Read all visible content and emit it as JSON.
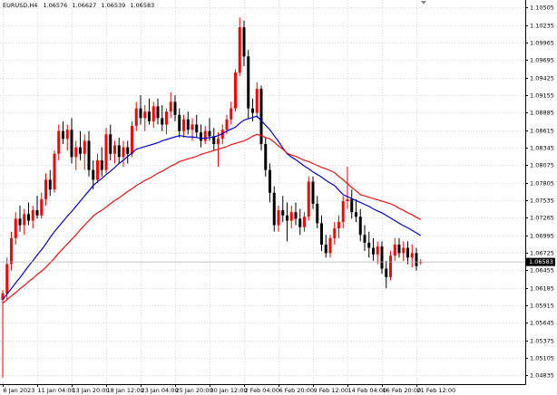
{
  "chart_data": {
    "type": "candlestick",
    "title": "EURUSD,H4",
    "up_color": "#ff0000",
    "down_color": "#000000",
    "grid": true,
    "ylim": [
      1.047,
      1.1062
    ],
    "yticks": [
      1.10505,
      1.10235,
      1.09965,
      1.09695,
      1.09425,
      1.09155,
      1.08885,
      1.08615,
      1.08345,
      1.08075,
      1.07805,
      1.07535,
      1.07265,
      1.06995,
      1.06725,
      1.06455,
      1.06185,
      1.05915,
      1.05645,
      1.05375,
      1.05105,
      1.04835
    ],
    "categories": [
      "6 Jan 2023",
      null,
      null,
      null,
      null,
      null,
      null,
      null,
      "11 Jan 04:00",
      null,
      null,
      null,
      null,
      null,
      null,
      null,
      "13 Jan 20:00",
      null,
      null,
      null,
      null,
      null,
      null,
      null,
      "18 Jan 12:00",
      null,
      null,
      null,
      null,
      null,
      null,
      null,
      "23 Jan 04:00",
      null,
      null,
      null,
      null,
      null,
      null,
      null,
      "25 Jan 20:00",
      null,
      null,
      null,
      null,
      null,
      null,
      null,
      "30 Jan 12:00",
      null,
      null,
      null,
      null,
      null,
      null,
      null,
      "2 Feb 04:00",
      null,
      null,
      null,
      null,
      null,
      null,
      null,
      "6 Feb 20:00",
      null,
      null,
      null,
      null,
      null,
      null,
      null,
      "9 Feb 12:00",
      null,
      null,
      null,
      null,
      null,
      null,
      null,
      "14 Feb 04:00",
      null,
      null,
      null,
      null,
      null,
      null,
      null,
      "16 Feb 20:00",
      null,
      null,
      null,
      null,
      null,
      null,
      null,
      "21 Feb 12:00",
      null
    ],
    "ohlc": [
      [
        1.06,
        1.0615,
        1.048,
        1.061
      ],
      [
        1.061,
        1.0665,
        1.06,
        1.0655
      ],
      [
        1.0655,
        1.0705,
        1.0645,
        1.0695
      ],
      [
        1.0695,
        1.0735,
        1.0685,
        1.0725
      ],
      [
        1.0725,
        1.0745,
        1.0705,
        1.0715
      ],
      [
        1.0715,
        1.074,
        1.07,
        1.0732
      ],
      [
        1.0732,
        1.075,
        1.0715,
        1.0722
      ],
      [
        1.0722,
        1.0745,
        1.071,
        1.0738
      ],
      [
        1.0738,
        1.076,
        1.0725,
        1.073
      ],
      [
        1.073,
        1.0765,
        1.0725,
        1.0755
      ],
      [
        1.0755,
        1.0795,
        1.0745,
        1.0785
      ],
      [
        1.0785,
        1.08,
        1.076,
        1.077
      ],
      [
        1.077,
        1.083,
        1.0765,
        1.0825
      ],
      [
        1.0825,
        1.087,
        1.0815,
        1.086
      ],
      [
        1.086,
        1.0875,
        1.084,
        1.0848
      ],
      [
        1.0848,
        1.087,
        1.083,
        1.0862
      ],
      [
        1.0862,
        1.088,
        1.081,
        1.082
      ],
      [
        1.082,
        1.0845,
        1.08,
        1.0835
      ],
      [
        1.0835,
        1.086,
        1.0815,
        1.0825
      ],
      [
        1.0825,
        1.0855,
        1.08,
        1.0845
      ],
      [
        1.0845,
        1.086,
        1.079,
        1.08
      ],
      [
        1.08,
        1.0815,
        1.077,
        1.0785
      ],
      [
        1.0785,
        1.0825,
        1.078,
        1.0815
      ],
      [
        1.0815,
        1.0835,
        1.079,
        1.08
      ],
      [
        1.08,
        1.0865,
        1.0795,
        1.0855
      ],
      [
        1.0855,
        1.087,
        1.0815,
        1.0825
      ],
      [
        1.0825,
        1.0845,
        1.081,
        1.0838
      ],
      [
        1.0838,
        1.085,
        1.081,
        1.082
      ],
      [
        1.082,
        1.0845,
        1.0805,
        1.0835
      ],
      [
        1.0835,
        1.0845,
        1.081,
        1.0825
      ],
      [
        1.0825,
        1.0875,
        1.082,
        1.0868
      ],
      [
        1.0868,
        1.0905,
        1.086,
        1.0895
      ],
      [
        1.0895,
        1.0915,
        1.087,
        1.088
      ],
      [
        1.088,
        1.09,
        1.086,
        1.089
      ],
      [
        1.089,
        1.091,
        1.087,
        1.0875
      ],
      [
        1.0875,
        1.0905,
        1.0865,
        1.0898
      ],
      [
        1.0898,
        1.091,
        1.087,
        1.088
      ],
      [
        1.088,
        1.09,
        1.086,
        1.087
      ],
      [
        1.087,
        1.0895,
        1.0855,
        1.089
      ],
      [
        1.089,
        1.092,
        1.088,
        1.0905
      ],
      [
        1.0905,
        1.0915,
        1.0875,
        1.0885
      ],
      [
        1.0885,
        1.0895,
        1.085,
        1.086
      ],
      [
        1.086,
        1.0885,
        1.085,
        1.0878
      ],
      [
        1.0878,
        1.089,
        1.0855,
        1.0862
      ],
      [
        1.0862,
        1.088,
        1.0845,
        1.087
      ],
      [
        1.087,
        1.0885,
        1.085,
        1.0858
      ],
      [
        1.0858,
        1.087,
        1.0835,
        1.0845
      ],
      [
        1.0845,
        1.0868,
        1.084,
        1.086
      ],
      [
        1.086,
        1.088,
        1.0845,
        1.0852
      ],
      [
        1.0852,
        1.0865,
        1.083,
        1.084
      ],
      [
        1.084,
        1.0858,
        1.0805,
        1.0848
      ],
      [
        1.0848,
        1.087,
        1.084,
        1.0862
      ],
      [
        1.0862,
        1.0885,
        1.0855,
        1.0878
      ],
      [
        1.0878,
        1.0905,
        1.087,
        1.0895
      ],
      [
        1.0895,
        1.0955,
        1.089,
        1.095
      ],
      [
        1.095,
        1.1035,
        1.0945,
        1.102
      ],
      [
        1.102,
        1.103,
        1.096,
        1.0975
      ],
      [
        1.0975,
        1.0985,
        1.088,
        1.0895
      ],
      [
        1.0895,
        1.091,
        1.0875,
        1.0888
      ],
      [
        1.0888,
        1.0935,
        1.088,
        1.0925
      ],
      [
        1.0925,
        1.093,
        1.083,
        1.084
      ],
      [
        1.084,
        1.085,
        1.079,
        1.08
      ],
      [
        1.08,
        1.081,
        1.075,
        1.0765
      ],
      [
        1.0765,
        1.0775,
        1.0705,
        1.0715
      ],
      [
        1.0715,
        1.0745,
        1.0705,
        1.0738
      ],
      [
        1.0738,
        1.076,
        1.072,
        1.073
      ],
      [
        1.073,
        1.075,
        1.069,
        1.0722
      ],
      [
        1.0722,
        1.0745,
        1.071,
        1.0735
      ],
      [
        1.0735,
        1.075,
        1.0715,
        1.0725
      ],
      [
        1.0725,
        1.074,
        1.07,
        1.0712
      ],
      [
        1.0712,
        1.0735,
        1.0705,
        1.0728
      ],
      [
        1.0728,
        1.079,
        1.0722,
        1.0782
      ],
      [
        1.0782,
        1.079,
        1.074,
        1.0748
      ],
      [
        1.0748,
        1.076,
        1.071,
        1.0718
      ],
      [
        1.0718,
        1.073,
        1.0675,
        1.0685
      ],
      [
        1.0685,
        1.07,
        1.0665,
        1.0672
      ],
      [
        1.0672,
        1.07,
        1.0665,
        1.0695
      ],
      [
        1.0695,
        1.072,
        1.0685,
        1.071
      ],
      [
        1.071,
        1.073,
        1.0695,
        1.072
      ],
      [
        1.072,
        1.076,
        1.071,
        1.0752
      ],
      [
        1.0752,
        1.0805,
        1.074,
        1.0755
      ],
      [
        1.0755,
        1.077,
        1.0725,
        1.0735
      ],
      [
        1.0735,
        1.0755,
        1.072,
        1.0728
      ],
      [
        1.0728,
        1.074,
        1.069,
        1.07
      ],
      [
        1.07,
        1.0715,
        1.0675,
        1.0688
      ],
      [
        1.0688,
        1.0705,
        1.0665,
        1.068
      ],
      [
        1.068,
        1.0695,
        1.066,
        1.067
      ],
      [
        1.067,
        1.069,
        1.0655,
        1.0682
      ],
      [
        1.0682,
        1.069,
        1.064,
        1.0648
      ],
      [
        1.0648,
        1.066,
        1.0618,
        1.0635
      ],
      [
        1.0635,
        1.0675,
        1.063,
        1.0668
      ],
      [
        1.0668,
        1.0695,
        1.066,
        1.0685
      ],
      [
        1.0685,
        1.0695,
        1.0665,
        1.0672
      ],
      [
        1.0672,
        1.069,
        1.066,
        1.068
      ],
      [
        1.068,
        1.069,
        1.0655,
        1.0665
      ],
      [
        1.0665,
        1.0685,
        1.065,
        1.0672
      ],
      [
        1.0672,
        1.068,
        1.0645,
        1.0652
      ],
      [
        1.06576,
        1.06627,
        1.06539,
        1.06583
      ]
    ],
    "series": [
      {
        "color": "#0000cc",
        "values": [
          1.06,
          1.0609,
          1.0617,
          1.0626,
          1.0634,
          1.0643,
          1.0652,
          1.066,
          1.0669,
          1.0677,
          1.0686,
          1.0696,
          1.0705,
          1.0713,
          1.0721,
          1.0729,
          1.0736,
          1.0744,
          1.0752,
          1.076,
          1.0768,
          1.0776,
          1.0782,
          1.0787,
          1.0793,
          1.0798,
          1.0804,
          1.081,
          1.0815,
          1.0821,
          1.0826,
          1.0832,
          1.0834,
          1.0836,
          1.0838,
          1.084,
          1.0842,
          1.0845,
          1.0847,
          1.0849,
          1.0851,
          1.0853,
          1.0852,
          1.0851,
          1.0851,
          1.085,
          1.0849,
          1.0849,
          1.085,
          1.0851,
          1.0853,
          1.0856,
          1.086,
          1.0863,
          1.0866,
          1.0872,
          1.0877,
          1.0879,
          1.0881,
          1.0883,
          1.0876,
          1.0869,
          1.0862,
          1.0853,
          1.0844,
          1.0834,
          1.0825,
          1.082,
          1.0816,
          1.0811,
          1.0806,
          1.0802,
          1.0797,
          1.0793,
          1.0789,
          1.0784,
          1.078,
          1.0776,
          1.0769,
          1.0762,
          1.0759,
          1.0756,
          1.0753,
          1.075,
          1.0747,
          1.0744,
          1.074,
          1.0737,
          1.0734,
          1.073,
          1.0726,
          1.0722,
          1.0718,
          1.0714,
          1.0711,
          1.0707,
          1.0703,
          1.0699
        ]
      },
      {
        "color": "#ee1111",
        "values": [
          1.0595,
          1.06,
          1.0606,
          1.0611,
          1.0617,
          1.0622,
          1.0628,
          1.0633,
          1.0639,
          1.0644,
          1.065,
          1.0657,
          1.0664,
          1.0672,
          1.0679,
          1.0686,
          1.0693,
          1.07,
          1.0708,
          1.0715,
          1.0722,
          1.0729,
          1.0734,
          1.0738,
          1.0743,
          1.0748,
          1.0753,
          1.0757,
          1.0762,
          1.0767,
          1.0771,
          1.0776,
          1.078,
          1.0784,
          1.0787,
          1.0791,
          1.0795,
          1.0798,
          1.0802,
          1.0806,
          1.0809,
          1.0813,
          1.0815,
          1.0817,
          1.0819,
          1.0821,
          1.0824,
          1.0826,
          1.0828,
          1.083,
          1.0832,
          1.0834,
          1.0836,
          1.0839,
          1.0841,
          1.0843,
          1.0845,
          1.0848,
          1.0852,
          1.0855,
          1.0853,
          1.085,
          1.0848,
          1.0843,
          1.0837,
          1.0832,
          1.0826,
          1.0823,
          1.0821,
          1.0818,
          1.0815,
          1.0813,
          1.081,
          1.0807,
          1.0804,
          1.0802,
          1.0799,
          1.0796,
          1.079,
          1.0785,
          1.0779,
          1.0773,
          1.0768,
          1.0762,
          1.076,
          1.0758,
          1.0756,
          1.0754,
          1.0752,
          1.075,
          1.0748,
          1.0745,
          1.0741,
          1.0738,
          1.0734,
          1.0731,
          1.0727,
          1.0724
        ]
      }
    ]
  }
}
